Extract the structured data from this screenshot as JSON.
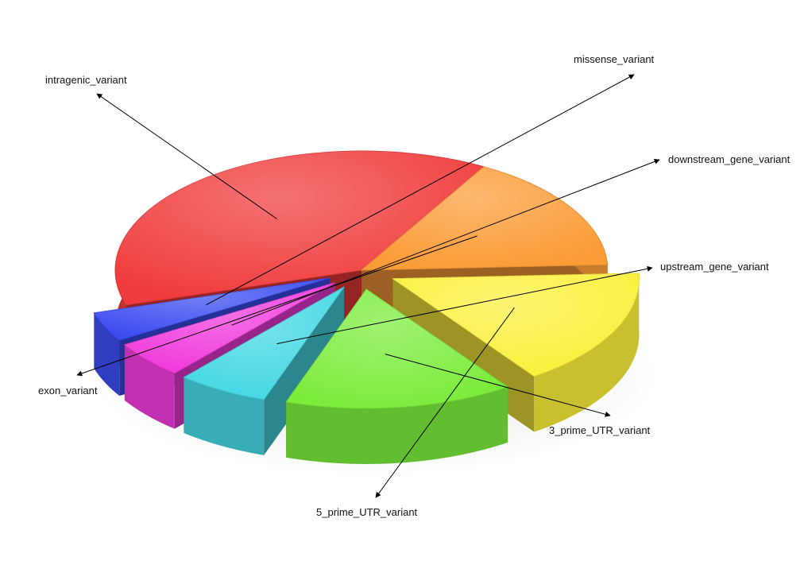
{
  "chart_data": {
    "type": "pie",
    "categories": [
      "intragenic_variant",
      "exon_variant",
      "5_prime_UTR_variant",
      "3_prime_UTR_variant",
      "upstream_gene_variant",
      "downstream_gene_variant",
      "missense_variant"
    ],
    "values": [
      38,
      16,
      16,
      15,
      6,
      5,
      4
    ],
    "colors": [
      "#f03c3c",
      "#fb9c37",
      "#fbf03c",
      "#7cec3c",
      "#46d8e4",
      "#f03cdc",
      "#3c4cf0"
    ],
    "exploded": [
      false,
      false,
      true,
      true,
      true,
      true,
      true
    ],
    "legend": "none",
    "style": "3d"
  }
}
